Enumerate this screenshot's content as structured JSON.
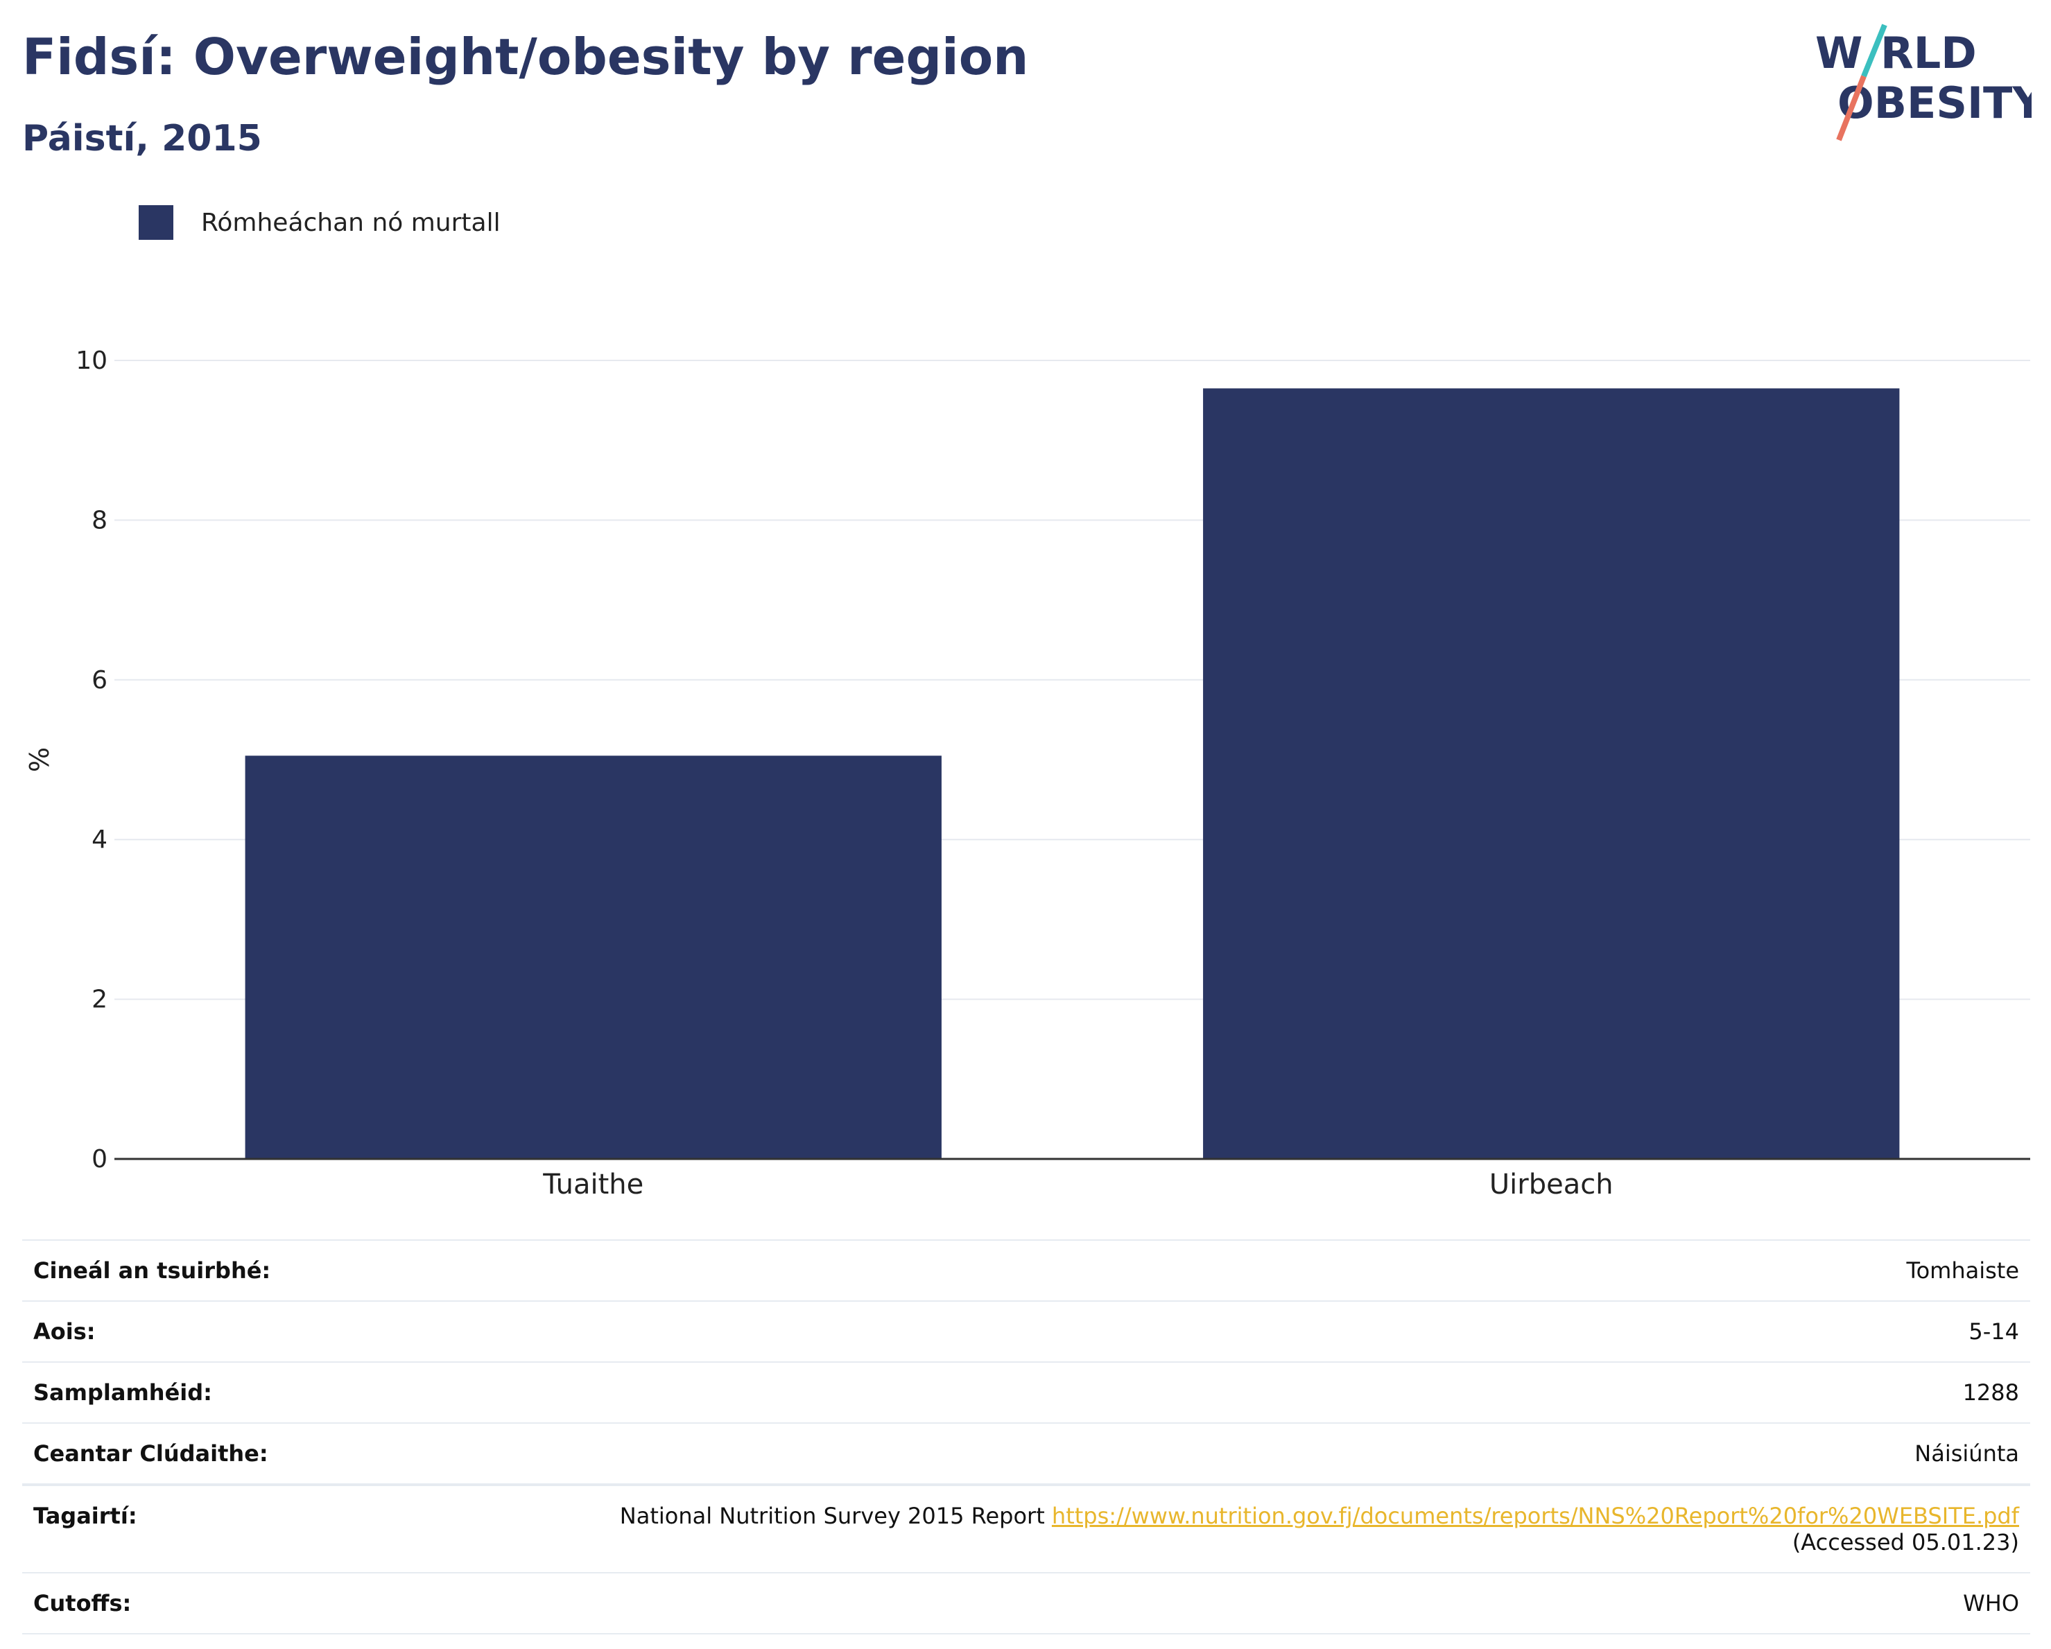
{
  "header": {
    "title": "Fidsí: Overweight/obesity by region",
    "subtitle": "Páistí, 2015",
    "logo_top": "W",
    "logo_top_rest": "RLD",
    "logo_bottom": "OBESITY"
  },
  "legend": {
    "label": "Rómheáchan nó murtall",
    "color": "#2a3663"
  },
  "chart_data": {
    "type": "bar",
    "categories": [
      "Tuaithe",
      "Uirbeach"
    ],
    "series": [
      {
        "name": "Rómheáchan nó murtall",
        "values": [
          5.05,
          9.65
        ],
        "color": "#2a3663"
      }
    ],
    "ylabel": "%",
    "ylim": [
      0,
      10
    ],
    "yticks": [
      0,
      2,
      4,
      6,
      8,
      10
    ],
    "grid": true,
    "legend_position": "top-left"
  },
  "info": {
    "rows": [
      {
        "key": "Cineál an tsuirbhé:",
        "value": "Tomhaiste"
      },
      {
        "key": "Aois:",
        "value": "5-14"
      },
      {
        "key": "Samplamhéid:",
        "value": "1288"
      },
      {
        "key": "Ceantar Clúdaithe:",
        "value": "Náisiúnta"
      }
    ],
    "reference_key": "Tagairtí:",
    "reference_text": "National Nutrition Survey 2015 Report ",
    "reference_link": "https://www.nutrition.gov.fj/documents/reports/NNS%20Report%20for%20WEBSITE.pdf",
    "reference_accessed": "(Accessed 05.01.23)",
    "cutoffs_key": "Cutoffs:",
    "cutoffs_value": "WHO"
  }
}
